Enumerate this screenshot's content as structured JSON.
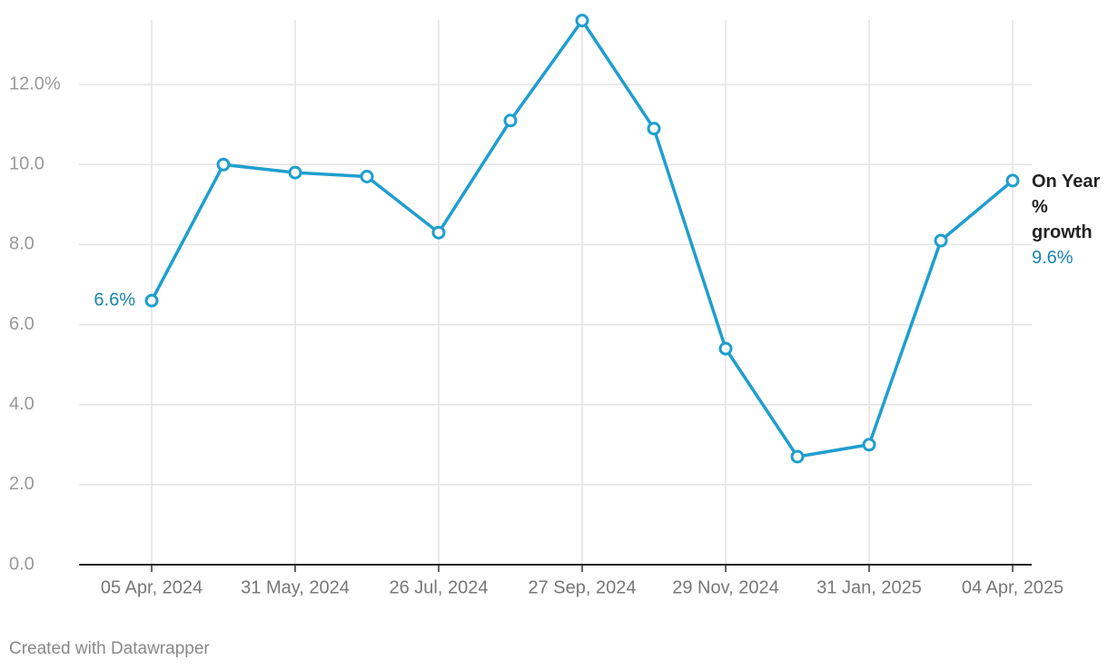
{
  "chart_data": {
    "type": "line",
    "categories": [
      "05 Apr, 2024",
      null,
      "31 May, 2024",
      null,
      "26 Jul, 2024",
      null,
      "27 Sep, 2024",
      null,
      "29 Nov, 2024",
      null,
      "31 Jan, 2025",
      null,
      "04 Apr, 2025"
    ],
    "series": [
      {
        "name": "On Year % growth",
        "color": "#1f9ece",
        "values": [
          6.6,
          10.0,
          9.8,
          9.7,
          8.3,
          11.1,
          13.6,
          10.9,
          5.4,
          2.7,
          3.0,
          8.1,
          9.6
        ],
        "value_labels": [
          "6.6%",
          null,
          null,
          null,
          null,
          null,
          null,
          null,
          null,
          null,
          null,
          null,
          "9.6%"
        ]
      }
    ],
    "ylim": [
      0,
      14
    ],
    "yticks": [
      {
        "value": 0,
        "label": "0.0"
      },
      {
        "value": 2,
        "label": "2.0"
      },
      {
        "value": 4,
        "label": "4.0"
      },
      {
        "value": 6,
        "label": "6.0"
      },
      {
        "value": 8,
        "label": "8.0"
      },
      {
        "value": 10,
        "label": "10.0"
      },
      {
        "value": 12,
        "label": "12.0%"
      }
    ],
    "grid": true,
    "footer": "Created with Datawrapper"
  }
}
